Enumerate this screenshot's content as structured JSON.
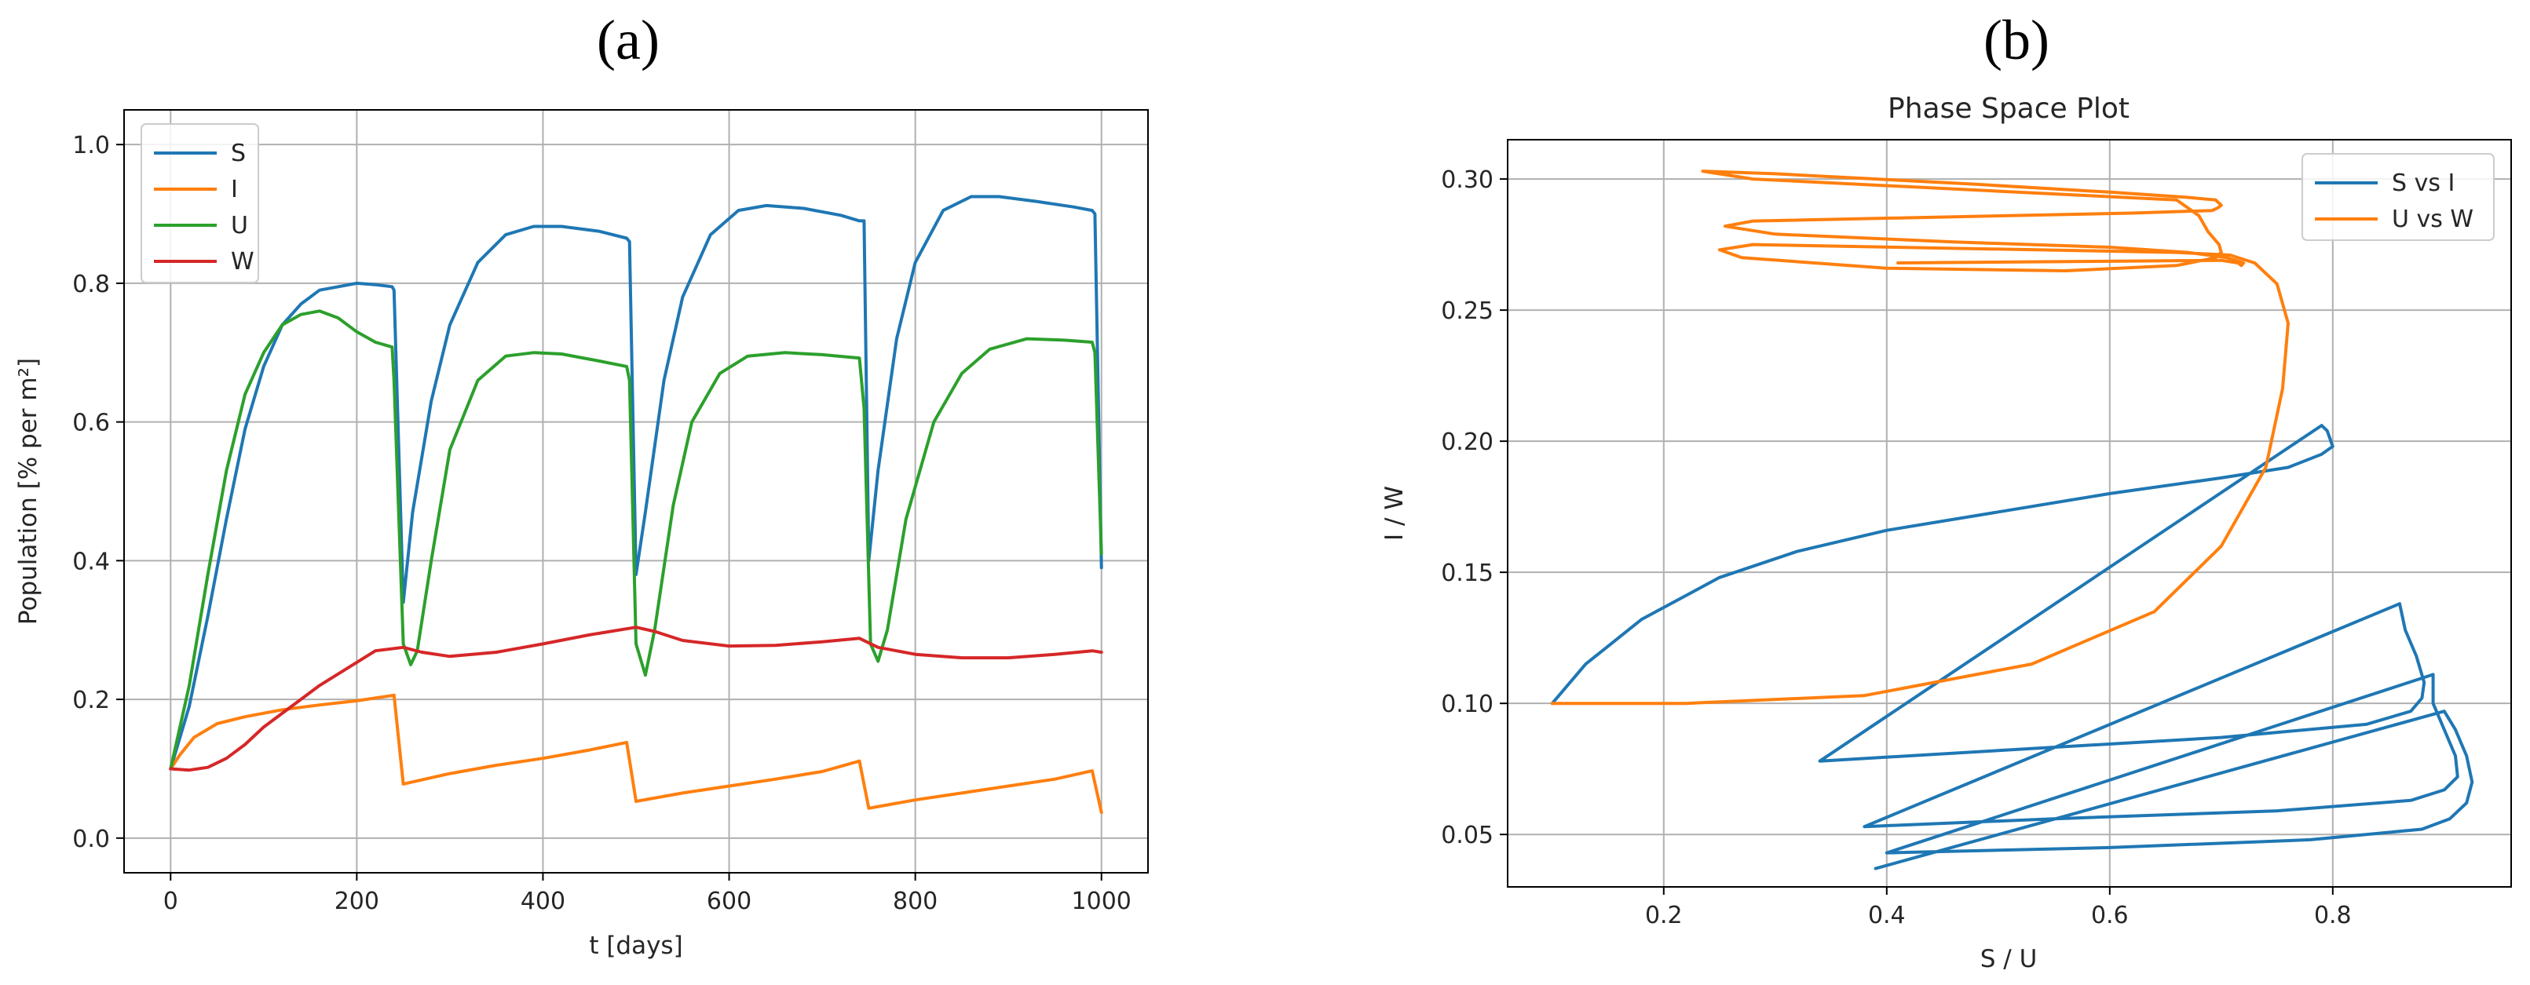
{
  "chart_data": [
    {
      "id": "a",
      "panel_label": "(a)",
      "type": "line",
      "title": "",
      "xlabel": "t [days]",
      "ylabel": "Population [% per m²]",
      "xlim": [
        -50,
        1050
      ],
      "ylim": [
        -0.05,
        1.05
      ],
      "xticks": [
        0,
        200,
        400,
        600,
        800,
        1000
      ],
      "yticks": [
        0.0,
        0.2,
        0.4,
        0.6,
        0.8,
        1.0
      ],
      "xtick_labels": [
        "0",
        "200",
        "400",
        "600",
        "800",
        "1000"
      ],
      "ytick_labels": [
        "0.0",
        "0.2",
        "0.4",
        "0.6",
        "0.8",
        "1.0"
      ],
      "grid": true,
      "legend_position": "top-left",
      "series": [
        {
          "name": "S",
          "color": "#1f77b4",
          "x": [
            0,
            20,
            40,
            60,
            80,
            100,
            120,
            140,
            160,
            180,
            200,
            220,
            238,
            240,
            250,
            260,
            280,
            300,
            330,
            360,
            390,
            420,
            460,
            490,
            493,
            500,
            510,
            530,
            550,
            580,
            610,
            640,
            680,
            720,
            740,
            745,
            750,
            760,
            780,
            800,
            830,
            860,
            890,
            930,
            970,
            990,
            993,
            1000
          ],
          "y": [
            0.1,
            0.19,
            0.32,
            0.46,
            0.59,
            0.68,
            0.74,
            0.77,
            0.79,
            0.795,
            0.8,
            0.798,
            0.795,
            0.79,
            0.34,
            0.47,
            0.63,
            0.74,
            0.83,
            0.87,
            0.882,
            0.882,
            0.875,
            0.865,
            0.86,
            0.38,
            0.47,
            0.66,
            0.78,
            0.87,
            0.905,
            0.912,
            0.908,
            0.898,
            0.89,
            0.89,
            0.4,
            0.53,
            0.72,
            0.83,
            0.905,
            0.925,
            0.925,
            0.918,
            0.91,
            0.905,
            0.9,
            0.39
          ]
        },
        {
          "name": "I",
          "color": "#ff7f0e",
          "x": [
            0,
            10,
            25,
            50,
            80,
            120,
            160,
            200,
            240,
            250,
            300,
            350,
            400,
            450,
            490,
            500,
            550,
            600,
            650,
            700,
            740,
            750,
            800,
            850,
            900,
            950,
            990,
            1000
          ],
          "y": [
            0.1,
            0.12,
            0.145,
            0.165,
            0.175,
            0.185,
            0.192,
            0.198,
            0.206,
            0.078,
            0.093,
            0.105,
            0.115,
            0.127,
            0.138,
            0.053,
            0.065,
            0.075,
            0.085,
            0.096,
            0.111,
            0.043,
            0.055,
            0.065,
            0.075,
            0.085,
            0.097,
            0.037
          ]
        },
        {
          "name": "U",
          "color": "#2ca02c",
          "x": [
            0,
            20,
            40,
            60,
            80,
            100,
            120,
            140,
            160,
            180,
            200,
            220,
            238,
            240,
            250,
            258,
            265,
            280,
            300,
            330,
            360,
            390,
            420,
            460,
            490,
            493,
            500,
            510,
            520,
            540,
            560,
            590,
            620,
            660,
            700,
            740,
            745,
            752,
            760,
            770,
            790,
            820,
            850,
            880,
            920,
            960,
            990,
            993,
            1000
          ],
          "y": [
            0.1,
            0.22,
            0.38,
            0.53,
            0.64,
            0.7,
            0.74,
            0.755,
            0.76,
            0.75,
            0.73,
            0.715,
            0.708,
            0.66,
            0.28,
            0.25,
            0.27,
            0.4,
            0.56,
            0.66,
            0.695,
            0.7,
            0.698,
            0.688,
            0.68,
            0.66,
            0.28,
            0.235,
            0.3,
            0.48,
            0.6,
            0.67,
            0.695,
            0.7,
            0.697,
            0.692,
            0.62,
            0.28,
            0.255,
            0.3,
            0.46,
            0.6,
            0.67,
            0.705,
            0.72,
            0.718,
            0.715,
            0.7,
            0.41
          ]
        },
        {
          "name": "W",
          "color": "#d62728",
          "x": [
            0,
            20,
            40,
            60,
            80,
            100,
            130,
            160,
            190,
            220,
            250,
            270,
            300,
            350,
            400,
            450,
            500,
            520,
            550,
            600,
            650,
            700,
            740,
            760,
            800,
            850,
            900,
            950,
            990,
            1000
          ],
          "y": [
            0.1,
            0.098,
            0.102,
            0.115,
            0.135,
            0.16,
            0.19,
            0.22,
            0.245,
            0.27,
            0.275,
            0.268,
            0.262,
            0.268,
            0.28,
            0.293,
            0.304,
            0.298,
            0.285,
            0.277,
            0.278,
            0.283,
            0.288,
            0.275,
            0.265,
            0.26,
            0.26,
            0.265,
            0.27,
            0.268
          ]
        }
      ]
    },
    {
      "id": "b",
      "panel_label": "(b)",
      "type": "line",
      "title": "Phase Space Plot",
      "xlabel": "S / U",
      "ylabel": "I / W",
      "xlim": [
        0.06,
        0.96
      ],
      "ylim": [
        0.03,
        0.315
      ],
      "xticks": [
        0.2,
        0.4,
        0.6,
        0.8
      ],
      "yticks": [
        0.05,
        0.1,
        0.15,
        0.2,
        0.25,
        0.3
      ],
      "xtick_labels": [
        "0.2",
        "0.4",
        "0.6",
        "0.8"
      ],
      "ytick_labels": [
        "0.05",
        "0.10",
        "0.15",
        "0.20",
        "0.25",
        "0.30"
      ],
      "grid": true,
      "legend_position": "top-right",
      "series": [
        {
          "name": "S vs I",
          "color": "#1f77b4",
          "x": [
            0.1,
            0.13,
            0.18,
            0.25,
            0.32,
            0.4,
            0.5,
            0.6,
            0.7,
            0.76,
            0.79,
            0.8,
            0.795,
            0.79,
            0.34,
            0.5,
            0.7,
            0.83,
            0.87,
            0.88,
            0.882,
            0.875,
            0.865,
            0.86,
            0.38,
            0.55,
            0.75,
            0.87,
            0.9,
            0.912,
            0.91,
            0.9,
            0.89,
            0.89,
            0.4,
            0.6,
            0.78,
            0.88,
            0.905,
            0.92,
            0.925,
            0.92,
            0.91,
            0.9,
            0.39
          ],
          "y": [
            0.1,
            0.115,
            0.132,
            0.148,
            0.158,
            0.166,
            0.173,
            0.18,
            0.186,
            0.19,
            0.195,
            0.198,
            0.204,
            0.206,
            0.078,
            0.082,
            0.087,
            0.092,
            0.097,
            0.102,
            0.108,
            0.118,
            0.128,
            0.138,
            0.053,
            0.056,
            0.059,
            0.063,
            0.067,
            0.072,
            0.08,
            0.09,
            0.1,
            0.111,
            0.043,
            0.045,
            0.048,
            0.052,
            0.056,
            0.062,
            0.07,
            0.08,
            0.09,
            0.097,
            0.037
          ]
        },
        {
          "name": "U vs W",
          "color": "#ff7f0e",
          "x": [
            0.1,
            0.22,
            0.38,
            0.53,
            0.64,
            0.7,
            0.74,
            0.755,
            0.76,
            0.75,
            0.73,
            0.715,
            0.708,
            0.66,
            0.28,
            0.25,
            0.27,
            0.4,
            0.56,
            0.66,
            0.695,
            0.7,
            0.698,
            0.688,
            0.68,
            0.66,
            0.28,
            0.235,
            0.3,
            0.48,
            0.6,
            0.67,
            0.695,
            0.7,
            0.697,
            0.692,
            0.62,
            0.28,
            0.255,
            0.3,
            0.46,
            0.6,
            0.67,
            0.705,
            0.72,
            0.718,
            0.715,
            0.7,
            0.41
          ],
          "y": [
            0.1,
            0.1,
            0.103,
            0.115,
            0.135,
            0.16,
            0.19,
            0.22,
            0.245,
            0.26,
            0.268,
            0.27,
            0.271,
            0.272,
            0.275,
            0.273,
            0.27,
            0.266,
            0.265,
            0.267,
            0.27,
            0.272,
            0.275,
            0.28,
            0.286,
            0.292,
            0.3,
            0.303,
            0.302,
            0.298,
            0.295,
            0.293,
            0.292,
            0.29,
            0.289,
            0.288,
            0.287,
            0.284,
            0.282,
            0.279,
            0.276,
            0.274,
            0.272,
            0.27,
            0.268,
            0.267,
            0.268,
            0.269,
            0.268
          ]
        }
      ]
    }
  ]
}
